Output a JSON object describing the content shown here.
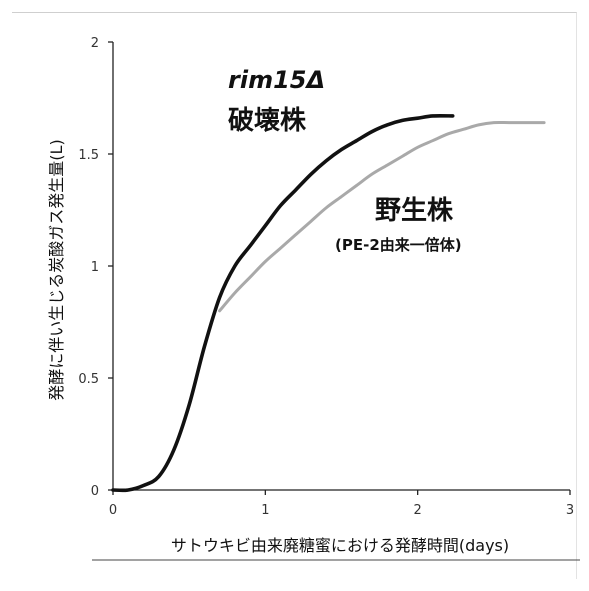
{
  "chart_data": {
    "type": "line",
    "xlabel": "サトウキビ由来廃糖蜜における発酵時間(days)",
    "ylabel": "発酵に伴い生じる炭酸ガス発生量(L)",
    "xlim": [
      0,
      3
    ],
    "ylim": [
      0,
      2
    ],
    "xticks": [
      "0",
      "1",
      "2",
      "3"
    ],
    "yticks": [
      "0",
      "0.5",
      "1",
      "1.5",
      "2"
    ],
    "grid": false,
    "series": [
      {
        "name": "rim15Δ 破壊株",
        "color": "#111111",
        "x": [
          0.0,
          0.1,
          0.2,
          0.3,
          0.4,
          0.5,
          0.6,
          0.7,
          0.8,
          0.9,
          1.0,
          1.1,
          1.2,
          1.3,
          1.4,
          1.5,
          1.6,
          1.7,
          1.8,
          1.9,
          2.0,
          2.1,
          2.23
        ],
        "y": [
          0.0,
          0.0,
          0.02,
          0.06,
          0.18,
          0.38,
          0.64,
          0.86,
          1.0,
          1.09,
          1.18,
          1.27,
          1.34,
          1.41,
          1.47,
          1.52,
          1.56,
          1.6,
          1.63,
          1.65,
          1.66,
          1.67,
          1.67
        ]
      },
      {
        "name": "野生株 (PE-2由来一倍体)",
        "color": "#a9a9a9",
        "x": [
          0.7,
          0.8,
          0.9,
          1.0,
          1.1,
          1.2,
          1.3,
          1.4,
          1.5,
          1.6,
          1.7,
          1.8,
          1.9,
          2.0,
          2.1,
          2.2,
          2.3,
          2.4,
          2.5,
          2.6,
          2.7,
          2.83
        ],
        "y": [
          0.8,
          0.88,
          0.95,
          1.02,
          1.08,
          1.14,
          1.2,
          1.26,
          1.31,
          1.36,
          1.41,
          1.45,
          1.49,
          1.53,
          1.56,
          1.59,
          1.61,
          1.63,
          1.64,
          1.64,
          1.64,
          1.64
        ]
      }
    ],
    "annotations": {
      "mutant_line1": "rim15Δ",
      "mutant_line2": "破壊株",
      "wild_line1": "野生株",
      "wild_line2": "(PE-2由来一倍体)"
    }
  }
}
